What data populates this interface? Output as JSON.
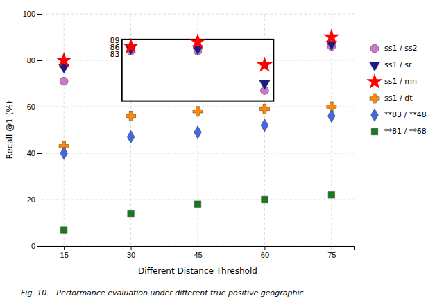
{
  "chart_data": {
    "type": "scatter",
    "x_label": "Different Distance Threshold",
    "y_label": "Recall @1 (%)",
    "caption": "Fig. 10.   Performance evaluation under different true positive geographic",
    "x": [
      15,
      30,
      45,
      60,
      75
    ],
    "series": [
      {
        "name": "ss1 / ss2",
        "color": "#cc77cc",
        "marker": "circle",
        "values": [
          71,
          84,
          84,
          67,
          86
        ]
      },
      {
        "name": "ss1 / sr",
        "color": "#1a1a8c",
        "marker": "triangle_down",
        "values": [
          77,
          85,
          85,
          70,
          87
        ]
      },
      {
        "name": "ss1 / mn",
        "color": "#ff0000",
        "marker": "star",
        "values": [
          80,
          86,
          88,
          78,
          90
        ]
      },
      {
        "name": "ss1 / dt",
        "color": "#ff8c00",
        "marker": "plus",
        "values": [
          43,
          56,
          58,
          59,
          60
        ]
      },
      {
        "name": "**83 / **48",
        "color": "#4169e1",
        "marker": "diamond",
        "values": [
          40,
          47,
          49,
          52,
          56
        ]
      },
      {
        "name": "**81 / **68",
        "color": "#1a7a1a",
        "marker": "square",
        "values": [
          7,
          14,
          18,
          20,
          22
        ]
      }
    ],
    "xlim": [
      10,
      80
    ],
    "ylim": [
      0,
      100
    ],
    "xticks": [
      15,
      30,
      45,
      60,
      75
    ],
    "yticks": [
      0,
      20,
      40,
      60,
      80,
      100
    ],
    "grid": true,
    "legend": "right",
    "annotations": [
      {
        "type": "box",
        "x": [
          28,
          62
        ],
        "y": [
          62.5,
          89
        ]
      },
      {
        "text": "89",
        "x": 27.5,
        "y": 88.5
      },
      {
        "text": "86",
        "x": 27.5,
        "y": 85.5
      },
      {
        "text": "83",
        "x": 27.5,
        "y": 82.5
      }
    ]
  }
}
